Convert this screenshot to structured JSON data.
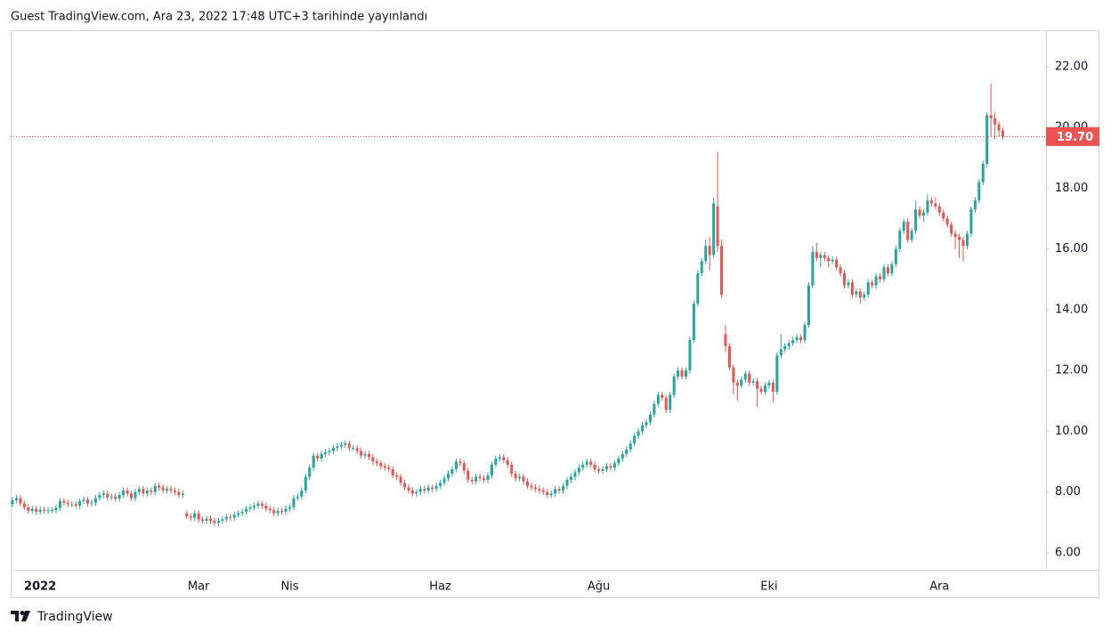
{
  "chart_data": {
    "type": "candlestick",
    "title": "Guest TradingView.com, Ara 23, 2022 17:48 UTC+3 tarihinde yayınlandı",
    "brand": "TradingView",
    "categories": [
      null,
      null,
      null,
      null,
      null,
      null,
      null,
      "2022",
      null,
      null,
      null,
      null,
      null,
      null,
      null,
      null,
      null,
      null,
      null,
      null,
      null,
      null,
      null,
      null,
      null,
      null,
      null,
      null,
      null,
      null,
      null,
      null,
      null,
      null,
      null,
      null,
      null,
      null,
      null,
      null,
      null,
      null,
      null,
      null,
      null,
      null,
      null,
      "Mar",
      null,
      null,
      null,
      null,
      null,
      null,
      null,
      null,
      null,
      null,
      null,
      null,
      null,
      null,
      null,
      null,
      null,
      null,
      null,
      null,
      null,
      null,
      "Nis",
      null,
      null,
      null,
      null,
      null,
      null,
      null,
      null,
      null,
      null,
      null,
      null,
      null,
      null,
      null,
      null,
      null,
      null,
      null,
      null,
      null,
      null,
      null,
      null,
      null,
      null,
      null,
      null,
      null,
      null,
      null,
      null,
      null,
      null,
      null,
      null,
      null,
      "Haz",
      null,
      null,
      null,
      null,
      null,
      null,
      null,
      null,
      null,
      null,
      null,
      null,
      null,
      null,
      null,
      null,
      null,
      null,
      null,
      null,
      null,
      null,
      null,
      null,
      null,
      null,
      null,
      null,
      null,
      null,
      null,
      null,
      null,
      null,
      null,
      null,
      null,
      null,
      null,
      "Ağu",
      null,
      null,
      null,
      null,
      null,
      null,
      null,
      null,
      null,
      null,
      null,
      null,
      null,
      null,
      null,
      null,
      null,
      null,
      null,
      null,
      null,
      null,
      null,
      null,
      null,
      null,
      null,
      null,
      null,
      null,
      null,
      null,
      null,
      null,
      null,
      null,
      null,
      null,
      null,
      null,
      null,
      null,
      "Eki",
      null,
      null,
      null,
      null,
      null,
      null,
      null,
      null,
      null,
      null,
      null,
      null,
      null,
      null,
      null,
      null,
      null,
      null,
      null,
      null,
      null,
      null,
      null,
      null,
      null,
      null,
      null,
      null,
      null,
      null,
      null,
      null,
      null,
      null,
      null,
      null,
      null,
      null,
      null,
      null,
      null,
      null,
      "Ara",
      null,
      null,
      null,
      null,
      null,
      null,
      null,
      null,
      null,
      null,
      null,
      null,
      null,
      null,
      null,
      null
    ],
    "open": [
      7.6,
      7.73,
      7.8,
      7.62,
      7.5,
      7.38,
      7.45,
      7.35,
      7.42,
      7.38,
      7.4,
      7.4,
      7.48,
      7.7,
      7.65,
      7.6,
      7.6,
      7.55,
      7.7,
      7.75,
      7.62,
      7.65,
      7.8,
      7.9,
      7.95,
      7.82,
      7.85,
      7.78,
      7.9,
      8.05,
      7.95,
      7.8,
      8.0,
      8.1,
      7.95,
      8.05,
      8.0,
      8.2,
      8.15,
      8.05,
      8.1,
      8.05,
      8.0,
      7.9,
      7.3,
      7.2,
      7.15,
      7.3,
      7.1,
      7.05,
      7.12,
      7.05,
      6.98,
      7.05,
      7.1,
      7.18,
      7.15,
      7.25,
      7.3,
      7.35,
      7.45,
      7.5,
      7.55,
      7.62,
      7.55,
      7.45,
      7.4,
      7.3,
      7.38,
      7.35,
      7.45,
      7.5,
      7.8,
      7.85,
      8.05,
      8.5,
      8.8,
      9.2,
      9.1,
      9.25,
      9.3,
      9.35,
      9.45,
      9.5,
      9.55,
      9.6,
      9.45,
      9.45,
      9.35,
      9.2,
      9.25,
      9.15,
      9.0,
      8.95,
      8.85,
      8.8,
      8.75,
      8.55,
      8.5,
      8.3,
      8.15,
      8.05,
      7.95,
      8.0,
      8.1,
      8.05,
      8.15,
      8.1,
      8.2,
      8.3,
      8.45,
      8.6,
      8.75,
      9.0,
      8.95,
      8.7,
      8.4,
      8.35,
      8.5,
      8.45,
      8.4,
      8.55,
      8.9,
      9.1,
      9.15,
      9.05,
      8.9,
      8.6,
      8.45,
      8.5,
      8.35,
      8.2,
      8.15,
      8.1,
      8.05,
      8.0,
      7.9,
      7.95,
      8.1,
      8.05,
      8.2,
      8.4,
      8.5,
      8.65,
      8.8,
      8.9,
      9.0,
      8.9,
      8.75,
      8.7,
      8.75,
      8.85,
      8.8,
      8.95,
      9.1,
      9.25,
      9.4,
      9.6,
      9.85,
      10.0,
      10.2,
      10.3,
      10.55,
      10.9,
      11.2,
      11.1,
      10.7,
      11.2,
      11.8,
      12.0,
      11.8,
      12.0,
      13.0,
      14.2,
      15.2,
      15.6,
      16.1,
      15.8,
      17.4,
      16.1,
      13.2,
      12.8,
      12.1,
      11.6,
      11.5,
      11.7,
      11.9,
      11.6,
      11.65,
      11.4,
      11.3,
      11.5,
      11.6,
      11.3,
      12.5,
      12.7,
      12.8,
      12.9,
      13.0,
      13.1,
      13.0,
      13.5,
      14.8,
      15.9,
      15.7,
      15.8,
      15.7,
      15.6,
      15.65,
      15.4,
      15.2,
      14.8,
      14.9,
      14.5,
      14.6,
      14.4,
      14.5,
      14.9,
      14.8,
      15.1,
      15.0,
      15.4,
      15.2,
      15.5,
      16.0,
      16.6,
      16.9,
      16.3,
      16.6,
      17.3,
      17.1,
      17.2,
      17.6,
      17.5,
      17.4,
      17.2,
      17.0,
      16.8,
      16.5,
      16.4,
      16.3,
      16.1,
      16.5,
      17.3,
      17.6,
      18.2,
      18.8,
      20.4,
      20.3,
      20.1,
      19.9
    ],
    "high": [
      7.83,
      7.9,
      7.9,
      7.72,
      7.6,
      7.55,
      7.55,
      7.52,
      7.52,
      7.5,
      7.5,
      7.58,
      7.8,
      7.8,
      7.75,
      7.7,
      7.7,
      7.8,
      7.85,
      7.85,
      7.75,
      7.9,
      8.0,
      8.05,
      8.05,
      7.95,
      7.95,
      8.0,
      8.15,
      8.15,
      8.05,
      8.1,
      8.2,
      8.2,
      8.15,
      8.15,
      8.3,
      8.3,
      8.25,
      8.2,
      8.2,
      8.15,
      8.1,
      8.05,
      7.4,
      7.3,
      7.4,
      7.4,
      7.2,
      7.22,
      7.22,
      7.15,
      7.15,
      7.2,
      7.28,
      7.28,
      7.35,
      7.4,
      7.45,
      7.55,
      7.6,
      7.65,
      7.72,
      7.72,
      7.65,
      7.55,
      7.5,
      7.48,
      7.48,
      7.55,
      7.6,
      7.9,
      7.95,
      8.15,
      8.6,
      8.9,
      9.3,
      9.3,
      9.35,
      9.4,
      9.45,
      9.55,
      9.6,
      9.65,
      9.7,
      9.7,
      9.55,
      9.55,
      9.45,
      9.35,
      9.35,
      9.25,
      9.1,
      9.05,
      8.95,
      8.9,
      8.85,
      8.65,
      8.6,
      8.4,
      8.25,
      8.15,
      8.1,
      8.2,
      8.2,
      8.25,
      8.25,
      8.3,
      8.4,
      8.55,
      8.7,
      8.85,
      9.1,
      9.1,
      9.05,
      8.8,
      8.5,
      8.6,
      8.6,
      8.55,
      8.65,
      9.0,
      9.2,
      9.25,
      9.25,
      9.15,
      9.0,
      8.7,
      8.6,
      8.6,
      8.45,
      8.3,
      8.25,
      8.2,
      8.15,
      8.1,
      8.05,
      8.2,
      8.2,
      8.3,
      8.5,
      8.6,
      8.75,
      8.9,
      9.0,
      9.1,
      9.1,
      9.0,
      8.85,
      8.85,
      8.95,
      8.95,
      9.05,
      9.2,
      9.35,
      9.5,
      9.7,
      9.95,
      10.1,
      10.3,
      10.4,
      10.65,
      11.0,
      11.3,
      11.3,
      11.2,
      11.3,
      11.9,
      12.1,
      12.1,
      12.1,
      13.1,
      14.3,
      15.3,
      15.7,
      16.3,
      16.4,
      17.7,
      19.2,
      16.3,
      13.5,
      12.9,
      12.2,
      11.7,
      11.8,
      12.0,
      12.0,
      11.75,
      11.75,
      11.5,
      11.6,
      11.7,
      11.7,
      12.6,
      13.2,
      12.9,
      13.0,
      13.1,
      13.2,
      13.2,
      13.6,
      14.9,
      16.1,
      16.2,
      15.9,
      15.9,
      15.8,
      15.75,
      15.75,
      15.5,
      15.3,
      15.0,
      15.0,
      14.7,
      14.7,
      14.6,
      15.0,
      15.0,
      15.2,
      15.2,
      15.5,
      15.5,
      15.6,
      16.1,
      16.7,
      17.0,
      17.0,
      16.7,
      17.6,
      17.4,
      17.3,
      17.8,
      17.7,
      17.7,
      17.5,
      17.3,
      17.1,
      16.9,
      16.6,
      16.5,
      16.4,
      16.6,
      17.4,
      17.7,
      18.3,
      18.9,
      20.5,
      21.45,
      20.5,
      20.2,
      20.0
    ],
    "low": [
      7.5,
      7.63,
      7.52,
      7.4,
      7.28,
      7.28,
      7.25,
      7.25,
      7.28,
      7.28,
      7.3,
      7.3,
      7.38,
      7.55,
      7.5,
      7.5,
      7.45,
      7.45,
      7.6,
      7.52,
      7.52,
      7.55,
      7.7,
      7.8,
      7.72,
      7.72,
      7.68,
      7.68,
      7.8,
      7.85,
      7.7,
      7.7,
      7.9,
      7.85,
      7.85,
      7.9,
      7.9,
      8.05,
      7.95,
      7.95,
      7.95,
      7.9,
      7.8,
      7.8,
      7.1,
      7.05,
      7.05,
      7.0,
      6.95,
      6.95,
      6.95,
      6.88,
      6.88,
      6.95,
      7.0,
      7.05,
      7.05,
      7.15,
      7.2,
      7.25,
      7.35,
      7.4,
      7.45,
      7.45,
      7.35,
      7.3,
      7.2,
      7.2,
      7.25,
      7.25,
      7.35,
      7.4,
      7.7,
      7.75,
      7.95,
      8.4,
      8.7,
      9.0,
      9.0,
      9.15,
      9.2,
      9.25,
      9.35,
      9.4,
      9.45,
      9.35,
      9.35,
      9.25,
      9.1,
      9.1,
      9.05,
      8.9,
      8.85,
      8.75,
      8.7,
      8.65,
      8.45,
      8.4,
      8.2,
      8.05,
      7.95,
      7.85,
      7.85,
      7.9,
      7.95,
      7.95,
      8.0,
      8.0,
      8.1,
      8.2,
      8.35,
      8.5,
      8.65,
      8.85,
      8.6,
      8.3,
      8.25,
      8.25,
      8.35,
      8.3,
      8.3,
      8.45,
      8.8,
      9.0,
      8.95,
      8.8,
      8.5,
      8.35,
      8.35,
      8.25,
      8.1,
      8.05,
      8.0,
      7.95,
      7.9,
      7.8,
      7.8,
      7.85,
      7.95,
      7.95,
      8.1,
      8.3,
      8.4,
      8.55,
      8.7,
      8.8,
      8.8,
      8.65,
      8.6,
      8.6,
      8.65,
      8.7,
      8.7,
      8.85,
      9.0,
      9.15,
      9.3,
      9.5,
      9.75,
      9.9,
      10.1,
      10.2,
      10.45,
      10.8,
      11.0,
      10.6,
      10.6,
      11.1,
      11.7,
      11.7,
      11.7,
      11.9,
      12.9,
      14.1,
      15.1,
      15.5,
      15.3,
      15.7,
      15.9,
      14.4,
      12.6,
      12.0,
      11.2,
      11.0,
      11.4,
      11.6,
      11.5,
      11.5,
      10.8,
      11.2,
      11.2,
      11.4,
      10.95,
      11.2,
      12.4,
      12.6,
      12.7,
      12.8,
      12.9,
      12.9,
      12.9,
      13.4,
      14.7,
      15.6,
      15.4,
      15.6,
      15.4,
      15.5,
      15.3,
      15.1,
      14.7,
      14.7,
      14.4,
      14.4,
      14.2,
      14.3,
      14.4,
      14.7,
      14.7,
      14.9,
      14.9,
      15.1,
      15.1,
      15.4,
      15.9,
      16.5,
      16.2,
      16.2,
      16.5,
      17.0,
      16.9,
      17.1,
      17.4,
      17.3,
      17.1,
      16.9,
      16.7,
      16.4,
      16.0,
      15.7,
      15.6,
      16.0,
      16.4,
      17.2,
      17.5,
      18.1,
      18.7,
      19.7,
      19.6,
      19.7,
      19.6
    ],
    "close": [
      7.73,
      7.8,
      7.62,
      7.5,
      7.38,
      7.45,
      7.35,
      7.42,
      7.38,
      7.4,
      7.4,
      7.48,
      7.7,
      7.65,
      7.6,
      7.6,
      7.55,
      7.7,
      7.75,
      7.62,
      7.65,
      7.8,
      7.9,
      7.95,
      7.82,
      7.85,
      7.78,
      7.9,
      8.05,
      7.95,
      7.8,
      8.0,
      8.1,
      7.95,
      8.05,
      8.0,
      8.2,
      8.15,
      8.05,
      8.1,
      8.05,
      8.0,
      7.9,
      7.95,
      7.2,
      7.15,
      7.3,
      7.1,
      7.05,
      7.12,
      7.05,
      6.98,
      7.05,
      7.1,
      7.18,
      7.15,
      7.25,
      7.3,
      7.35,
      7.45,
      7.5,
      7.55,
      7.62,
      7.55,
      7.45,
      7.4,
      7.3,
      7.38,
      7.35,
      7.45,
      7.5,
      7.8,
      7.85,
      8.05,
      8.5,
      8.8,
      9.2,
      9.1,
      9.25,
      9.3,
      9.35,
      9.45,
      9.5,
      9.55,
      9.6,
      9.45,
      9.45,
      9.35,
      9.2,
      9.25,
      9.15,
      9.0,
      8.95,
      8.85,
      8.8,
      8.75,
      8.55,
      8.5,
      8.3,
      8.15,
      8.05,
      7.95,
      8.0,
      8.1,
      8.05,
      8.15,
      8.1,
      8.2,
      8.3,
      8.45,
      8.6,
      8.75,
      9.0,
      8.95,
      8.7,
      8.4,
      8.35,
      8.5,
      8.45,
      8.4,
      8.55,
      8.9,
      9.1,
      9.15,
      9.05,
      8.9,
      8.6,
      8.45,
      8.5,
      8.35,
      8.2,
      8.15,
      8.1,
      8.05,
      8.0,
      7.9,
      7.95,
      8.1,
      8.05,
      8.2,
      8.4,
      8.5,
      8.65,
      8.8,
      8.9,
      9.0,
      8.9,
      8.75,
      8.7,
      8.75,
      8.85,
      8.8,
      8.95,
      9.1,
      9.25,
      9.4,
      9.6,
      9.85,
      10.0,
      10.2,
      10.3,
      10.55,
      10.9,
      11.2,
      11.1,
      10.7,
      11.2,
      11.8,
      12.0,
      11.8,
      12.0,
      13.0,
      14.2,
      15.2,
      15.6,
      16.1,
      15.8,
      17.5,
      16.1,
      14.5,
      12.8,
      12.1,
      11.6,
      11.5,
      11.7,
      11.9,
      11.6,
      11.65,
      11.4,
      11.3,
      11.5,
      11.6,
      11.3,
      12.5,
      12.7,
      12.8,
      12.9,
      13.0,
      13.1,
      13.0,
      13.5,
      14.8,
      15.9,
      15.7,
      15.8,
      15.7,
      15.6,
      15.65,
      15.4,
      15.2,
      14.8,
      14.9,
      14.5,
      14.6,
      14.4,
      14.5,
      14.9,
      14.8,
      15.1,
      15.0,
      15.4,
      15.2,
      15.5,
      16.0,
      16.6,
      16.9,
      16.3,
      16.6,
      17.3,
      17.1,
      17.2,
      17.6,
      17.5,
      17.4,
      17.2,
      17.0,
      16.8,
      16.5,
      16.4,
      16.3,
      16.1,
      16.5,
      17.3,
      17.6,
      18.2,
      18.8,
      20.4,
      20.3,
      20.1,
      19.9,
      19.7
    ],
    "last_label": "19.70",
    "up_color": "#26a69a",
    "down_color": "#ef5350",
    "ylim": [
      5.44,
      23.17
    ],
    "yticks": [
      {
        "value": 6,
        "label": "6.00"
      },
      {
        "value": 8,
        "label": "8.00"
      },
      {
        "value": 10,
        "label": "10.00"
      },
      {
        "value": 12,
        "label": "12.00"
      },
      {
        "value": 14,
        "label": "14.00"
      },
      {
        "value": 16,
        "label": "16.00"
      },
      {
        "value": 18,
        "label": "18.00"
      },
      {
        "value": 20,
        "label": "20.00"
      },
      {
        "value": 22,
        "label": "22.00"
      }
    ],
    "grid": false
  }
}
